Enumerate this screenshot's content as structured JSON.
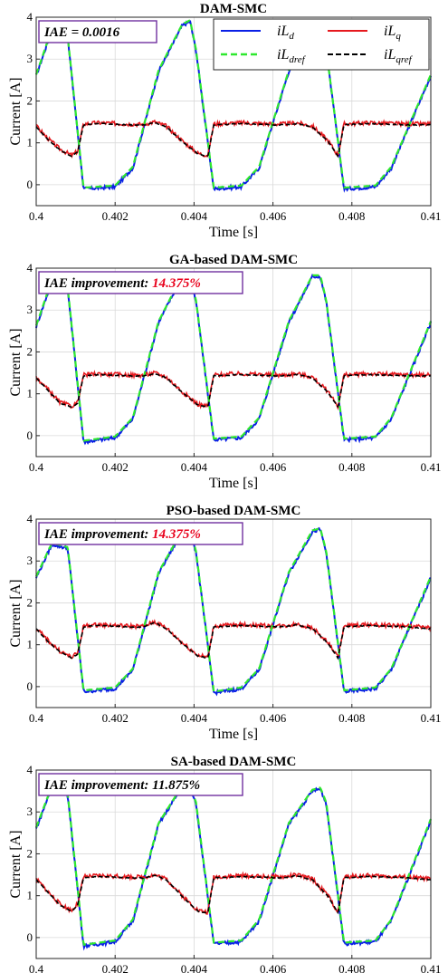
{
  "colors": {
    "iLd": "#0a20e6",
    "iLq": "#e6191e",
    "iLdref": "#2ee82e",
    "iLqref": "#000000",
    "annotation_border": "#7030a0",
    "improvement_value": "#e8001b"
  },
  "legend": [
    {
      "main": "iL",
      "sub": "d"
    },
    {
      "main": "iL",
      "sub": "q"
    },
    {
      "main": "iL",
      "sub": "dref"
    },
    {
      "main": "iL",
      "sub": "qref"
    }
  ],
  "chart_data": [
    {
      "type": "line",
      "title": "DAM-SMC",
      "annotation": {
        "label": "IAE = 0.0016",
        "value": ""
      },
      "xlabel": "Time [s]",
      "ylabel": "Current [A]",
      "xlim": [
        0.4,
        0.41
      ],
      "ylim": [
        -0.5,
        4
      ],
      "xticks": [
        "0.4",
        "0.402",
        "0.404",
        "0.406",
        "0.408",
        "0.41"
      ],
      "yticks": [
        "0",
        "1",
        "2",
        "3",
        "4"
      ],
      "grid": true,
      "legend_position": "top-right",
      "id_points": {
        "t": [
          0.4,
          0.4004,
          0.4008,
          0.4012,
          0.402,
          0.40245,
          0.4031,
          0.4037,
          0.4039,
          0.40405,
          0.4045,
          0.4052,
          0.40565,
          0.4064,
          0.407,
          0.4072,
          0.40735,
          0.4078,
          0.4086,
          0.409,
          0.41
        ],
        "v": [
          2.6,
          3.7,
          3.5,
          -0.1,
          -0.05,
          0.4,
          2.7,
          3.8,
          3.9,
          3.2,
          -0.1,
          -0.05,
          0.4,
          2.7,
          3.8,
          3.9,
          3.2,
          -0.1,
          -0.05,
          0.4,
          2.6
        ]
      },
      "iq_points": {
        "t": [
          0.4,
          0.4003,
          0.4006,
          0.4009,
          0.40105,
          0.4012,
          0.4016,
          0.4023,
          0.4027,
          0.403,
          0.4033,
          0.4037,
          0.4041,
          0.40435,
          0.4045,
          0.4052,
          0.406,
          0.4063,
          0.4066,
          0.407,
          0.4074,
          0.40765,
          0.4078,
          0.4084,
          0.4094,
          0.41
        ],
        "v": [
          1.4,
          1.1,
          0.85,
          0.7,
          0.8,
          1.45,
          1.48,
          1.45,
          1.44,
          1.5,
          1.4,
          1.05,
          0.75,
          0.7,
          1.45,
          1.48,
          1.45,
          1.45,
          1.48,
          1.4,
          1.05,
          0.7,
          1.45,
          1.48,
          1.45,
          1.45
        ]
      }
    },
    {
      "type": "line",
      "title": "GA-based DAM-SMC",
      "annotation": {
        "label": "IAE improvement: ",
        "value": "14.375%"
      },
      "xlabel": "Time [s]",
      "ylabel": "Current [A]",
      "xlim": [
        0.4,
        0.41
      ],
      "ylim": [
        -0.5,
        4
      ],
      "xticks": [
        "0.4",
        "0.402",
        "0.404",
        "0.406",
        "0.408",
        "0.41"
      ],
      "yticks": [
        "0",
        "1",
        "2",
        "3",
        "4"
      ],
      "grid": true,
      "id_points": {
        "t": [
          0.4,
          0.4004,
          0.4008,
          0.4012,
          0.402,
          0.40245,
          0.4031,
          0.4037,
          0.4039,
          0.40405,
          0.4045,
          0.4052,
          0.40565,
          0.4064,
          0.407,
          0.4072,
          0.40735,
          0.4078,
          0.4086,
          0.409,
          0.41
        ],
        "v": [
          2.6,
          3.7,
          3.5,
          -0.15,
          -0.05,
          0.4,
          2.7,
          3.8,
          3.8,
          3.2,
          -0.1,
          -0.05,
          0.4,
          2.7,
          3.8,
          3.8,
          3.2,
          -0.1,
          -0.05,
          0.4,
          2.7
        ]
      },
      "iq_points": {
        "t": [
          0.4,
          0.4003,
          0.4006,
          0.4009,
          0.40105,
          0.4012,
          0.4016,
          0.4023,
          0.4027,
          0.403,
          0.4033,
          0.4037,
          0.4041,
          0.40435,
          0.4045,
          0.4052,
          0.406,
          0.4063,
          0.4066,
          0.407,
          0.4074,
          0.40765,
          0.4078,
          0.4084,
          0.4094,
          0.41
        ],
        "v": [
          1.4,
          1.1,
          0.8,
          0.7,
          0.8,
          1.45,
          1.48,
          1.45,
          1.44,
          1.5,
          1.4,
          1.05,
          0.75,
          0.7,
          1.45,
          1.48,
          1.45,
          1.45,
          1.48,
          1.4,
          1.05,
          0.7,
          1.45,
          1.48,
          1.45,
          1.45
        ]
      }
    },
    {
      "type": "line",
      "title": "PSO-based DAM-SMC",
      "annotation": {
        "label": "IAE improvement: ",
        "value": "14.375%"
      },
      "xlabel": "Time [s]",
      "ylabel": "Current [A]",
      "xlim": [
        0.4,
        0.41
      ],
      "ylim": [
        -0.5,
        4
      ],
      "xticks": [
        "0.4",
        "0.402",
        "0.404",
        "0.406",
        "0.408",
        "0.41"
      ],
      "yticks": [
        "0",
        "1",
        "2",
        "3",
        "4"
      ],
      "grid": true,
      "id_points": {
        "t": [
          0.4,
          0.4004,
          0.4008,
          0.4012,
          0.402,
          0.40245,
          0.4031,
          0.4037,
          0.4039,
          0.40405,
          0.4045,
          0.4052,
          0.40565,
          0.4064,
          0.407,
          0.4072,
          0.40735,
          0.4078,
          0.4086,
          0.409,
          0.41
        ],
        "v": [
          2.6,
          3.4,
          3.3,
          -0.12,
          -0.05,
          0.4,
          2.7,
          3.7,
          3.75,
          3.2,
          -0.15,
          -0.05,
          0.4,
          2.7,
          3.7,
          3.75,
          3.2,
          -0.12,
          -0.05,
          0.4,
          2.6
        ]
      },
      "iq_points": {
        "t": [
          0.4,
          0.4003,
          0.4006,
          0.4009,
          0.40105,
          0.4012,
          0.4016,
          0.4023,
          0.4027,
          0.403,
          0.4033,
          0.4037,
          0.4041,
          0.40435,
          0.4045,
          0.4052,
          0.406,
          0.4063,
          0.4066,
          0.407,
          0.4074,
          0.40765,
          0.4078,
          0.4084,
          0.4094,
          0.41
        ],
        "v": [
          1.4,
          1.1,
          0.85,
          0.7,
          0.8,
          1.45,
          1.48,
          1.45,
          1.44,
          1.55,
          1.4,
          1.05,
          0.75,
          0.7,
          1.45,
          1.48,
          1.45,
          1.45,
          1.5,
          1.4,
          1.05,
          0.7,
          1.45,
          1.48,
          1.45,
          1.4
        ]
      }
    },
    {
      "type": "line",
      "title": "SA-based DAM-SMC",
      "annotation": {
        "label": "IAE improvement: 11.875%",
        "value": ""
      },
      "xlabel": "Time [s]",
      "ylabel": "Current [A]",
      "xlim": [
        0.4,
        0.41
      ],
      "ylim": [
        -0.5,
        4
      ],
      "xticks": [
        "0.4",
        "0.402",
        "0.404",
        "0.406",
        "0.408",
        "0.41"
      ],
      "yticks": [
        "0",
        "1",
        "2",
        "3",
        "4"
      ],
      "grid": true,
      "id_points": {
        "t": [
          0.4,
          0.4004,
          0.4008,
          0.4012,
          0.402,
          0.40245,
          0.4031,
          0.4037,
          0.4039,
          0.40405,
          0.4045,
          0.4052,
          0.40565,
          0.4064,
          0.407,
          0.4072,
          0.40735,
          0.4078,
          0.4086,
          0.409,
          0.41
        ],
        "v": [
          2.6,
          3.6,
          3.4,
          -0.2,
          -0.1,
          0.4,
          2.7,
          3.6,
          3.6,
          3.2,
          -0.15,
          -0.1,
          0.4,
          2.7,
          3.5,
          3.55,
          3.2,
          -0.15,
          -0.1,
          0.4,
          2.8
        ]
      },
      "iq_points": {
        "t": [
          0.4,
          0.4003,
          0.4006,
          0.4009,
          0.40105,
          0.4012,
          0.4016,
          0.4023,
          0.4027,
          0.403,
          0.4033,
          0.4037,
          0.4041,
          0.40435,
          0.4045,
          0.4052,
          0.406,
          0.4063,
          0.4066,
          0.407,
          0.4074,
          0.40765,
          0.4078,
          0.4084,
          0.4094,
          0.41
        ],
        "v": [
          1.4,
          1.1,
          0.8,
          0.65,
          0.8,
          1.45,
          1.48,
          1.45,
          1.44,
          1.5,
          1.4,
          1.0,
          0.65,
          0.6,
          1.45,
          1.48,
          1.45,
          1.45,
          1.5,
          1.4,
          1.0,
          0.6,
          1.45,
          1.48,
          1.45,
          1.4
        ]
      }
    }
  ]
}
